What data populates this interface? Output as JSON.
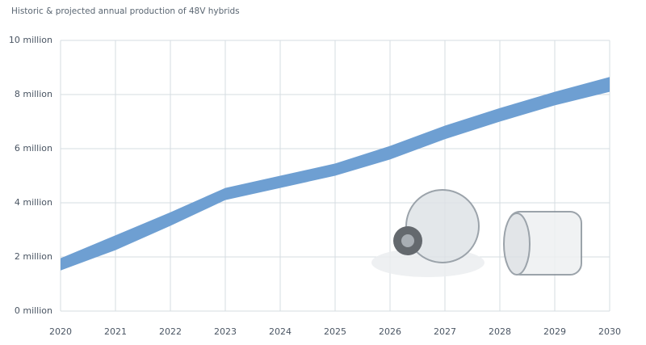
{
  "chart_data": {
    "type": "band",
    "title": "Historic & projected annual production of 48V hybrids",
    "x": [
      2020,
      2021,
      2022,
      2023,
      2024,
      2025,
      2026,
      2027,
      2028,
      2029,
      2030
    ],
    "upper": [
      1.95,
      2.8,
      3.65,
      4.55,
      5.0,
      5.45,
      6.1,
      6.85,
      7.5,
      8.1,
      8.65
    ],
    "lower": [
      1.5,
      2.25,
      3.15,
      4.1,
      4.55,
      5.0,
      5.6,
      6.35,
      7.0,
      7.6,
      8.1
    ],
    "color": "#6e9fd2",
    "xlim": [
      2020,
      2030
    ],
    "xticks": [
      2020,
      2021,
      2022,
      2023,
      2024,
      2025,
      2026,
      2027,
      2028,
      2029,
      2030
    ],
    "ylim": [
      0,
      10
    ],
    "yticks": [
      {
        "value": 0,
        "label": "0 million"
      },
      {
        "value": 2,
        "label": "2 million"
      },
      {
        "value": 4,
        "label": "4 million"
      },
      {
        "value": 6,
        "label": "6 million"
      },
      {
        "value": 8,
        "label": "8 million"
      },
      {
        "value": 10,
        "label": "10 million"
      }
    ],
    "grid": true
  }
}
